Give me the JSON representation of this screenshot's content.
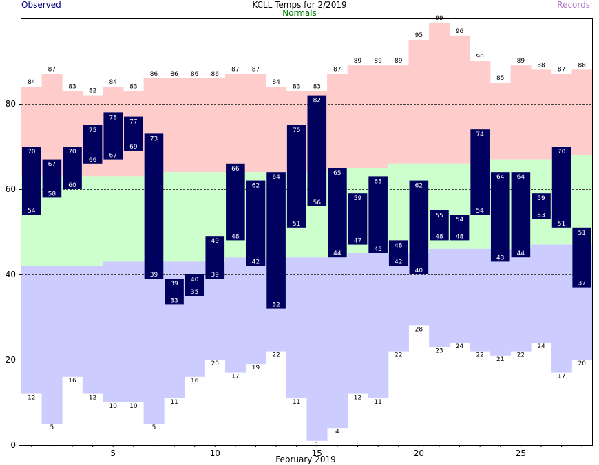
{
  "chart_data": {
    "type": "bar",
    "title": "KCLL Temps for 2/2019",
    "xlabel": "February 2019",
    "ylabel": "",
    "legend": [
      "Observed",
      "Normals",
      "Records"
    ],
    "legend_placement": "top",
    "ylim": [
      0,
      100
    ],
    "xlim": [
      1,
      28
    ],
    "y_ticks": [
      0,
      20,
      40,
      60,
      80
    ],
    "x_ticks": [
      5,
      10,
      15,
      20,
      25
    ],
    "grid": "horizontal dashed at 20, 40, 60, 80",
    "days": [
      1,
      2,
      3,
      4,
      5,
      6,
      7,
      8,
      9,
      10,
      11,
      12,
      13,
      14,
      15,
      16,
      17,
      18,
      19,
      20,
      21,
      22,
      23,
      24,
      25,
      26,
      27,
      28
    ],
    "series": [
      {
        "name": "Observed",
        "kind": "high",
        "values": [
          70,
          67,
          70,
          75,
          78,
          77,
          73,
          39,
          40,
          49,
          66,
          62,
          64,
          75,
          82,
          65,
          59,
          63,
          48,
          62,
          55,
          54,
          74,
          64,
          64,
          59,
          70,
          51
        ]
      },
      {
        "name": "Observed",
        "kind": "low",
        "values": [
          54,
          58,
          60,
          66,
          67,
          69,
          39,
          33,
          35,
          39,
          48,
          42,
          32,
          51,
          56,
          44,
          47,
          45,
          42,
          40,
          48,
          48,
          54,
          43,
          44,
          53,
          51,
          37
        ]
      },
      {
        "name": "Normals",
        "kind": "high",
        "values": [
          63,
          63,
          63,
          63,
          63,
          63,
          64,
          64,
          64,
          64,
          64,
          64,
          64,
          64,
          64,
          65,
          65,
          65,
          66,
          66,
          66,
          66,
          66,
          67,
          67,
          67,
          67,
          68
        ]
      },
      {
        "name": "Normals",
        "kind": "low",
        "values": [
          42,
          42,
          42,
          42,
          43,
          43,
          43,
          43,
          43,
          43,
          44,
          44,
          44,
          44,
          44,
          44,
          45,
          45,
          45,
          45,
          46,
          46,
          46,
          46,
          46,
          47,
          47,
          47
        ]
      },
      {
        "name": "Records",
        "kind": "high",
        "values": [
          84,
          87,
          83,
          82,
          84,
          83,
          86,
          86,
          86,
          86,
          87,
          87,
          84,
          83,
          83,
          87,
          89,
          89,
          89,
          95,
          99,
          96,
          90,
          85,
          89,
          88,
          87,
          88
        ]
      },
      {
        "name": "Records",
        "kind": "low",
        "values": [
          12,
          5,
          16,
          12,
          10,
          10,
          5,
          11,
          16,
          20,
          17,
          19,
          22,
          11,
          1,
          4,
          12,
          11,
          22,
          28,
          23,
          24,
          22,
          21,
          22,
          24,
          17,
          20
        ]
      }
    ]
  },
  "colors": {
    "observed": "#00005f",
    "observed_text": "#ffffff",
    "normal_high_band": "#ccffcc",
    "normal_low_band": "#ccccff",
    "record_high_band": "#ffcccc",
    "legend_observed": "#00007f",
    "legend_normals": "#007f00",
    "legend_records": "#b27fcc",
    "grid": "#404040"
  }
}
